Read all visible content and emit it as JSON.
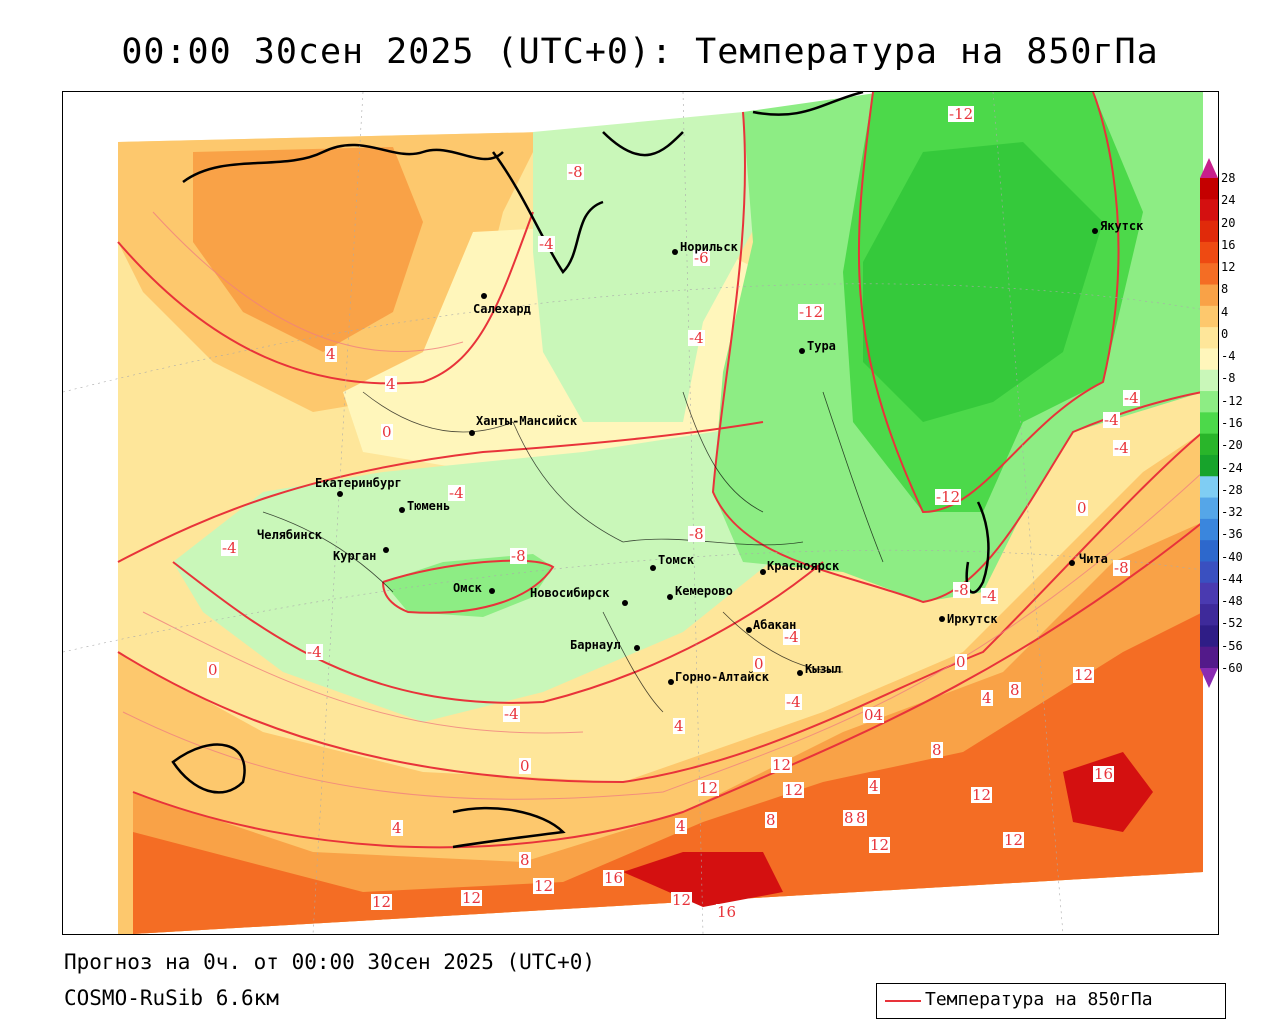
{
  "title": "00:00 30сен 2025 (UTC+0): Температура на 850гПа",
  "footer": {
    "forecast": "Прогноз на 0ч. от 00:00 30сен 2025 (UTC+0)",
    "model": "COSMO-RuSib 6.6км"
  },
  "legend": {
    "label": "Температура на 850гПа",
    "line_color": "#e8333a"
  },
  "colorbar": {
    "labels": [
      "28",
      "24",
      "20",
      "16",
      "12",
      "8",
      "4",
      "0",
      "-4",
      "-8",
      "-12",
      "-16",
      "-20",
      "-24",
      "-28",
      "-32",
      "-36",
      "-40",
      "-44",
      "-48",
      "-52",
      "-56",
      "-60"
    ],
    "colors": [
      "#c40000",
      "#d41010",
      "#e02a0a",
      "#ee4a12",
      "#f46d24",
      "#f9a247",
      "#fdc86d",
      "#fee69a",
      "#fff6bb",
      "#c9f7b9",
      "#8ded84",
      "#4cd94a",
      "#29b52a",
      "#17a32b",
      "#7fcdf3",
      "#55a6e8",
      "#3a86dd",
      "#2d68cc",
      "#3a50c0",
      "#4a3ab0",
      "#3e2a9a",
      "#2f1d86",
      "#531a8a"
    ],
    "top_arrow_color": "#c81f8c",
    "bottom_arrow_color": "#8a2bb2"
  },
  "contour_labels": [
    "-12",
    "-12",
    "-4",
    "-6",
    "-4",
    "-4",
    "-12",
    "0",
    "-4",
    "-4",
    "-8",
    "-4",
    "-8",
    "-4",
    "4",
    "4",
    "0",
    "0",
    "-4",
    "-4",
    "0",
    "4",
    "12",
    "4",
    "8",
    "12",
    "12",
    "16",
    "12",
    "8",
    "12",
    "12",
    "16",
    "8",
    "12",
    "12",
    "16",
    "12",
    "4",
    "8",
    "12",
    "8",
    "4",
    "0",
    "-4",
    "0",
    "04",
    "4",
    "12",
    "8",
    "-8",
    "-4",
    "-4",
    "-8",
    "-8"
  ],
  "cities": [
    {
      "name": "Норильск"
    },
    {
      "name": "Якутск"
    },
    {
      "name": "Салехард"
    },
    {
      "name": "Тура"
    },
    {
      "name": "Ханты-Мансийск"
    },
    {
      "name": "Екатеринбург"
    },
    {
      "name": "Тюмень"
    },
    {
      "name": "Челябинск"
    },
    {
      "name": "Курган"
    },
    {
      "name": "Омск"
    },
    {
      "name": "Новосибирск"
    },
    {
      "name": "Томск"
    },
    {
      "name": "Кемерово"
    },
    {
      "name": "Красноярск"
    },
    {
      "name": "Абакан"
    },
    {
      "name": "Барнаул"
    },
    {
      "name": "Горно-Алтайск"
    },
    {
      "name": "Кызыл"
    },
    {
      "name": "Иркутск"
    },
    {
      "name": "Чита"
    }
  ]
}
